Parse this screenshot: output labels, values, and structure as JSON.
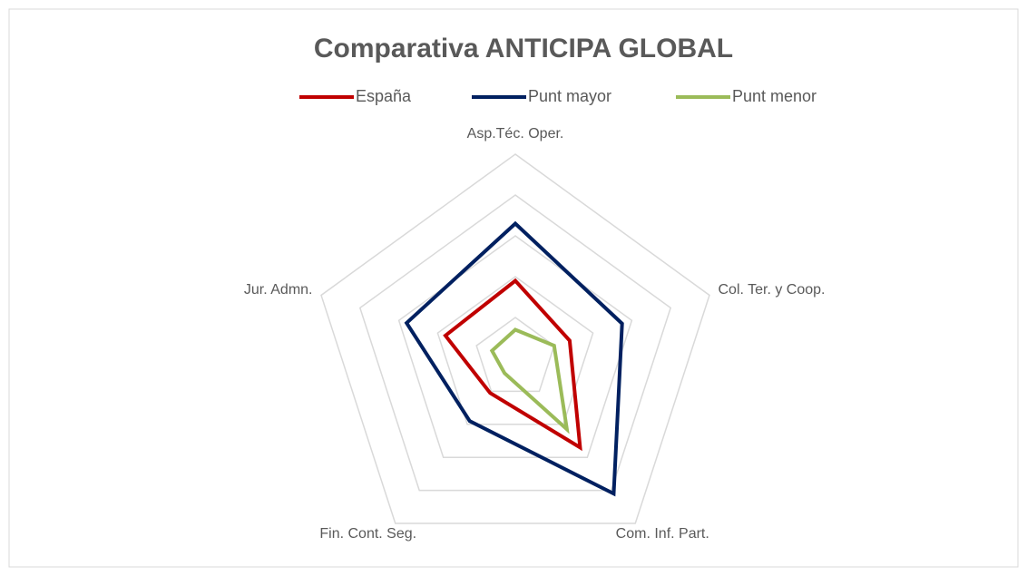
{
  "chart_data": {
    "type": "radar",
    "title": "Comparativa  ANTICIPA GLOBAL",
    "categories": [
      "Asp.Téc. Oper.",
      "Col. Ter. y Coop.",
      "Com. Inf. Part.",
      "Fin. Cont. Seg.",
      "Jur. Admn."
    ],
    "series": [
      {
        "name": "España",
        "color": "#c00000",
        "values": [
          1.9,
          1.4,
          2.7,
          1.05,
          1.8
        ]
      },
      {
        "name": "Punt mayor",
        "color": "#002060",
        "values": [
          3.3,
          2.75,
          4.1,
          1.9,
          2.8
        ]
      },
      {
        "name": "Punt menor",
        "color": "#9bbb59",
        "values": [
          0.7,
          1.0,
          2.15,
          0.45,
          0.6
        ]
      }
    ],
    "ylim": [
      0,
      5
    ],
    "yticks": [
      1,
      2,
      3,
      4,
      5
    ],
    "grid": true,
    "legend": "top"
  }
}
